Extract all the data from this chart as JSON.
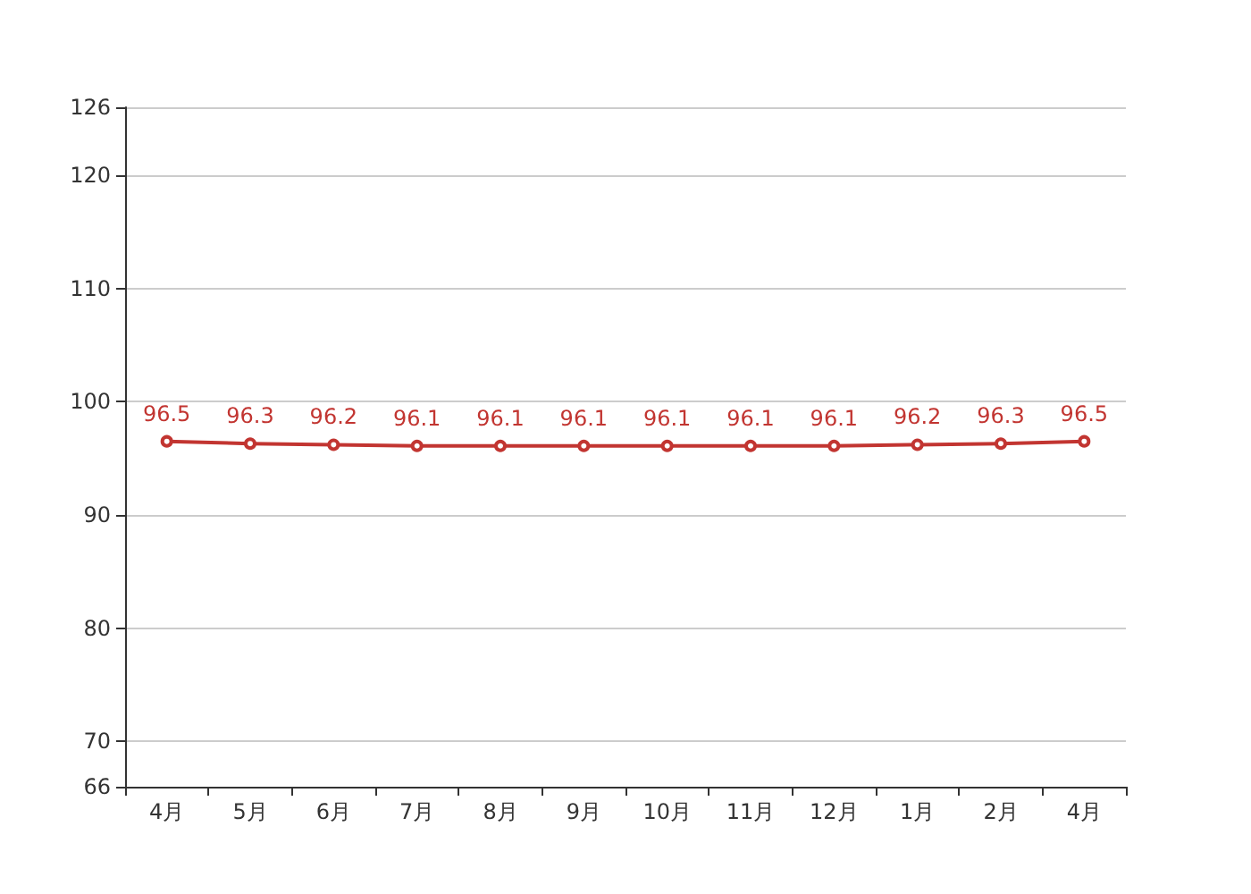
{
  "chart_data": {
    "type": "line",
    "categories": [
      "4月",
      "5月",
      "6月",
      "7月",
      "8月",
      "9月",
      "10月",
      "11月",
      "12月",
      "1月",
      "2月",
      "4月"
    ],
    "series": [
      {
        "color": "#c23531",
        "values": [
          96.5,
          96.3,
          96.2,
          96.1,
          96.1,
          96.1,
          96.1,
          96.1,
          96.1,
          96.2,
          96.3,
          96.5
        ]
      }
    ],
    "ylim": [
      66,
      126
    ],
    "yticks": [
      66,
      70,
      80,
      90,
      100,
      110,
      120,
      126
    ],
    "grid": "y",
    "marker": "circle",
    "data_labels": true
  }
}
